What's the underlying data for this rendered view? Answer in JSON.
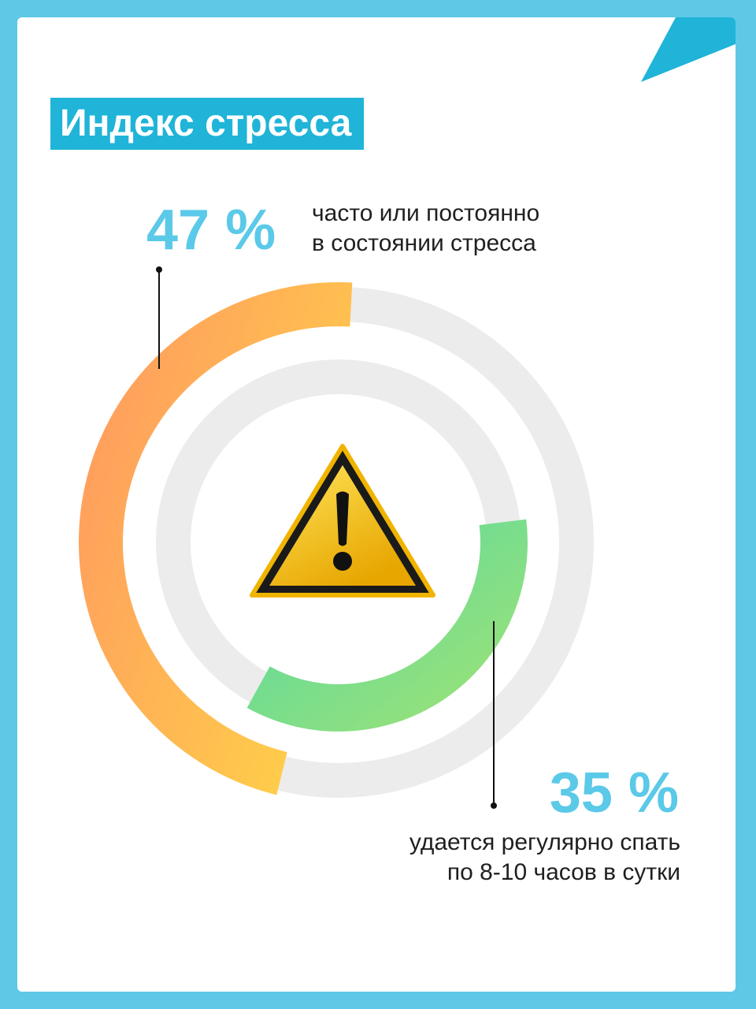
{
  "title": "Индекс стресса",
  "stats": [
    {
      "value": "47 %",
      "caption_line1": "часто или постоянно",
      "caption_line2": "в состоянии стресса"
    },
    {
      "value": "35 %",
      "caption_line1": "удается регулярно спать",
      "caption_line2": "по 8-10 часов в сутки"
    }
  ],
  "icon": "warning-triangle-icon",
  "colors": {
    "frame": "#5ec8e6",
    "accent": "#1fb4d8",
    "stat_text": "#5bc9e8",
    "track": "#ececec",
    "outer_ring_start": "#ff9a60",
    "outer_ring_end": "#ffcd4a",
    "inner_ring_start": "#55d8a4",
    "inner_ring_end": "#9be277"
  },
  "chart_data": {
    "type": "donut",
    "series": [
      {
        "ring": "outer",
        "value": 47,
        "max": 100
      },
      {
        "ring": "inner",
        "value": 35,
        "max": 100
      }
    ]
  }
}
